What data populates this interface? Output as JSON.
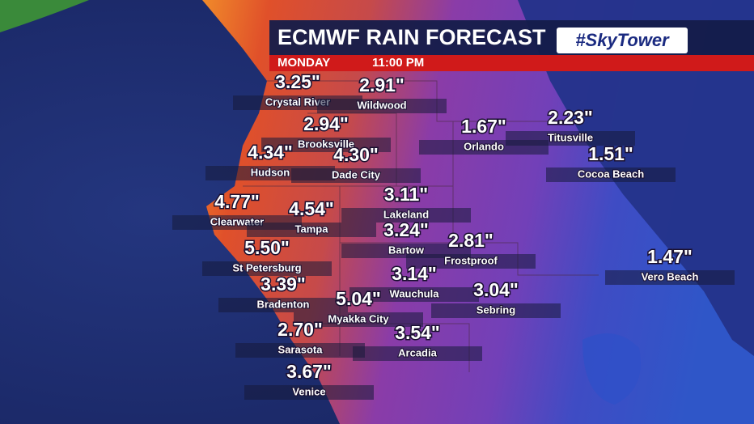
{
  "header": {
    "title": "ECMWF RAIN FORECAST",
    "brand": "#SkyTower",
    "day": "MONDAY",
    "time": "11:00 PM"
  },
  "cities": [
    {
      "name": "Crystal River",
      "amount": "3.25\""
    },
    {
      "name": "Wildwood",
      "amount": "2.91\""
    },
    {
      "name": "Brooksville",
      "amount": "2.94\""
    },
    {
      "name": "Hudson",
      "amount": "4.34\""
    },
    {
      "name": "Dade City",
      "amount": "4.30\""
    },
    {
      "name": "Orlando",
      "amount": "1.67\""
    },
    {
      "name": "Titusville",
      "amount": "2.23\""
    },
    {
      "name": "Cocoa Beach",
      "amount": "1.51\""
    },
    {
      "name": "Clearwater",
      "amount": "4.77\""
    },
    {
      "name": "Tampa",
      "amount": "4.54\""
    },
    {
      "name": "Lakeland",
      "amount": "3.11\""
    },
    {
      "name": "Bartow",
      "amount": "3.24\""
    },
    {
      "name": "Frostproof",
      "amount": "2.81\""
    },
    {
      "name": "St Petersburg",
      "amount": "5.50\""
    },
    {
      "name": "Vero Beach",
      "amount": "1.47\""
    },
    {
      "name": "Wauchula",
      "amount": "3.14\""
    },
    {
      "name": "Bradenton",
      "amount": "3.39\""
    },
    {
      "name": "Sebring",
      "amount": "3.04\""
    },
    {
      "name": "Myakka City",
      "amount": "5.04\""
    },
    {
      "name": "Sarasota",
      "amount": "2.70\""
    },
    {
      "name": "Arcadia",
      "amount": "3.54\""
    },
    {
      "name": "Venice",
      "amount": "3.67\""
    }
  ]
}
